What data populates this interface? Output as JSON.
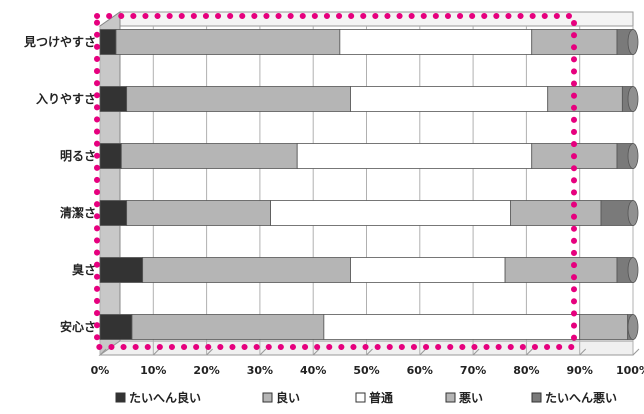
{
  "chart_data": {
    "type": "bar",
    "stacked": true,
    "orientation": "horizontal",
    "percent_axis": true,
    "categories": [
      "見つけやすさ",
      "入りやすさ",
      "明るさ",
      "清潔さ",
      "臭さ",
      "安心さ"
    ],
    "series": [
      {
        "name": "たいへん良い",
        "values": [
          3,
          5,
          4,
          5,
          8,
          6
        ],
        "color": "#333333"
      },
      {
        "name": "良い",
        "values": [
          42,
          42,
          33,
          27,
          39,
          36
        ],
        "color": "#b5b5b5"
      },
      {
        "name": "普通",
        "values": [
          36,
          37,
          44,
          45,
          29,
          48
        ],
        "color": "#ffffff"
      },
      {
        "name": "悪い",
        "values": [
          16,
          14,
          16,
          17,
          21,
          9
        ],
        "color": "#b5b5b5"
      },
      {
        "name": "たいへん悪い",
        "values": [
          3,
          2,
          3,
          6,
          3,
          1
        ],
        "color": "#7a7a7a"
      }
    ],
    "xlim": [
      0,
      100
    ],
    "xticks": [
      "0%",
      "10%",
      "20%",
      "30%",
      "40%",
      "50%",
      "60%",
      "70%",
      "80%",
      "90%",
      "100%"
    ],
    "grid": true,
    "legend_position": "bottom",
    "annotation": {
      "shape": "dotted-rectangle",
      "color": "#e6007e"
    }
  }
}
